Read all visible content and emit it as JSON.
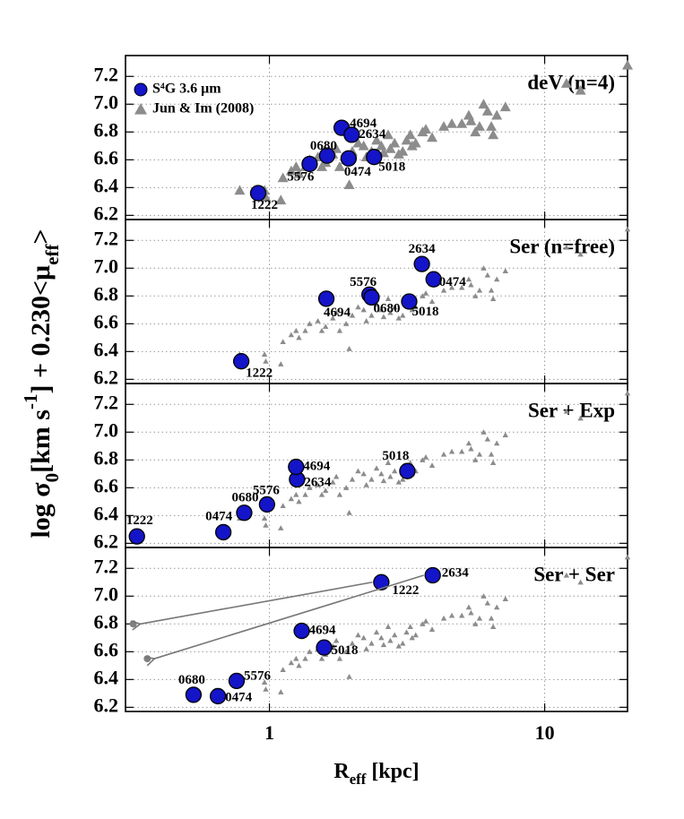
{
  "chart_data": [
    {
      "type": "scatter",
      "title": "deV (n=4)",
      "xscale": "log",
      "grid": true,
      "xlim": [
        0.3,
        20
      ],
      "ylim": [
        6.17,
        7.35
      ],
      "xticks": [
        1,
        10
      ],
      "yticks": [
        6.2,
        6.4,
        6.6,
        6.8,
        {
          "value": 7,
          "label": "7.0"
        },
        7.2
      ],
      "ylabel": [
        "log σ",
        "0",
        "[km s",
        "-1",
        "] + 0.230<μ",
        "eff",
        ">"
      ],
      "legend": "upper left",
      "series": [
        {
          "name": "S⁴G 3.6 μm",
          "color": "#1414c8",
          "labels": [
            "1222",
            "5576",
            "0680",
            "4694",
            "2634",
            "0474",
            "5018"
          ],
          "x": [
            0.91,
            1.4,
            1.62,
            1.83,
            1.99,
            1.94,
            2.4
          ],
          "values": [
            6.36,
            6.57,
            6.63,
            6.83,
            6.78,
            6.61,
            6.62
          ]
        },
        {
          "name": "Jun & Im (2008)",
          "color": "#8c8c8c",
          "x": [
            0.78,
            0.97,
            0.96,
            1.1,
            1.12,
            1.2,
            1.25,
            1.28,
            1.35,
            1.4,
            1.5,
            1.55,
            1.6,
            1.7,
            1.75,
            1.8,
            1.9,
            1.95,
            2.0,
            2.1,
            2.2,
            2.25,
            2.35,
            2.45,
            2.55,
            2.6,
            2.7,
            2.75,
            2.85,
            2.95,
            3.05,
            3.15,
            3.25,
            3.3,
            3.4,
            3.6,
            3.7,
            3.9,
            4.3,
            4.6,
            5.0,
            5.3,
            5.4,
            5.6,
            5.8,
            6.0,
            6.2,
            6.4,
            6.5,
            6.7,
            7.2,
            12,
            13.5,
            20
          ],
          "values": [
            6.38,
            6.33,
            6.38,
            6.31,
            6.47,
            6.52,
            6.55,
            6.5,
            6.55,
            6.6,
            6.62,
            6.55,
            6.58,
            6.64,
            6.68,
            6.55,
            6.6,
            6.42,
            6.66,
            6.72,
            6.7,
            6.62,
            6.66,
            6.74,
            6.7,
            6.65,
            6.78,
            6.68,
            6.72,
            6.64,
            6.66,
            6.74,
            6.78,
            6.7,
            6.72,
            6.8,
            6.82,
            6.76,
            6.84,
            6.86,
            6.86,
            6.92,
            6.88,
            6.8,
            6.84,
            7.0,
            6.95,
            6.84,
            6.78,
            6.92,
            6.98,
            7.15,
            7.1,
            7.28
          ]
        }
      ]
    },
    {
      "type": "scatter",
      "title": "Ser (n=free)",
      "xscale": "log",
      "grid": true,
      "xlim": [
        0.3,
        20
      ],
      "ylim": [
        6.17,
        7.35
      ],
      "xticks": [
        1,
        10
      ],
      "yticks": [
        6.2,
        6.4,
        6.6,
        6.8,
        {
          "value": 7,
          "label": "7.0"
        },
        7.2
      ],
      "series": [
        {
          "color": "#1414c8",
          "labels": [
            "1222",
            "4694",
            "5576",
            "0680",
            "5018",
            "2634",
            "0474"
          ],
          "x": [
            0.79,
            1.61,
            2.31,
            2.35,
            3.22,
            3.58,
            3.95
          ],
          "values": [
            6.33,
            6.78,
            6.81,
            6.79,
            6.76,
            7.03,
            6.92
          ]
        }
      ]
    },
    {
      "type": "scatter",
      "title": "Ser + Exp",
      "xscale": "log",
      "grid": true,
      "xlim": [
        0.3,
        20
      ],
      "ylim": [
        6.17,
        7.35
      ],
      "xticks": [
        1,
        10
      ],
      "yticks": [
        6.2,
        6.4,
        6.6,
        6.8,
        {
          "value": 7,
          "label": "7.0"
        },
        7.2
      ],
      "series": [
        {
          "color": "#1414c8",
          "labels": [
            "1222",
            "0474",
            "0680",
            "5576",
            "2634",
            "4694",
            "5018"
          ],
          "x": [
            0.33,
            0.68,
            0.81,
            0.98,
            1.26,
            1.25,
            3.17
          ],
          "values": [
            6.25,
            6.28,
            6.42,
            6.48,
            6.66,
            6.75,
            6.72
          ]
        }
      ]
    },
    {
      "type": "scatter",
      "title": "Ser + Ser",
      "xscale": "log",
      "grid": true,
      "xlim": [
        0.3,
        20
      ],
      "ylim": [
        6.17,
        7.35
      ],
      "xticks": [
        1,
        10
      ],
      "yticks": [
        6.2,
        6.4,
        6.6,
        6.8,
        {
          "value": 7,
          "label": "7.0"
        },
        7.2
      ],
      "xlabel": [
        "R",
        "eff",
        " [kpc]"
      ],
      "series": [
        {
          "color": "#1414c8",
          "labels": [
            "0680",
            "0474",
            "5576",
            "4694",
            "5018",
            "1222",
            "2634"
          ],
          "x": [
            0.53,
            0.65,
            0.76,
            1.31,
            1.58,
            2.55,
            3.92
          ],
          "values": [
            6.29,
            6.28,
            6.39,
            6.75,
            6.63,
            7.1,
            7.15
          ]
        },
        {
          "color": "#808080",
          "x": [
            0.32,
            0.36
          ],
          "values": [
            6.8,
            6.55
          ]
        }
      ]
    }
  ]
}
